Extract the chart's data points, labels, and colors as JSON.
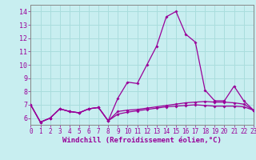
{
  "title": "",
  "xlabel": "Windchill (Refroidissement éolien,°C)",
  "bg_color": "#c8eef0",
  "line_color": "#990099",
  "grid_color": "#aadddd",
  "spine_color": "#888888",
  "x_values": [
    0,
    1,
    2,
    3,
    4,
    5,
    6,
    7,
    8,
    9,
    10,
    11,
    12,
    13,
    14,
    15,
    16,
    17,
    18,
    19,
    20,
    21,
    22,
    23
  ],
  "series1": [
    7.0,
    5.7,
    6.0,
    6.7,
    6.5,
    6.4,
    6.7,
    6.8,
    5.8,
    7.5,
    8.7,
    8.6,
    10.0,
    11.4,
    13.6,
    14.0,
    12.3,
    11.7,
    8.1,
    7.3,
    7.3,
    8.4,
    7.3,
    6.6
  ],
  "series2": [
    7.0,
    5.7,
    6.0,
    6.7,
    6.5,
    6.4,
    6.7,
    6.8,
    5.8,
    6.5,
    6.6,
    6.65,
    6.75,
    6.85,
    6.95,
    7.05,
    7.15,
    7.2,
    7.25,
    7.2,
    7.2,
    7.15,
    7.05,
    6.6
  ],
  "series3": [
    7.0,
    5.7,
    6.0,
    6.7,
    6.5,
    6.4,
    6.7,
    6.8,
    5.8,
    6.3,
    6.45,
    6.55,
    6.65,
    6.75,
    6.85,
    6.9,
    6.95,
    7.0,
    6.95,
    6.9,
    6.9,
    6.9,
    6.85,
    6.6
  ],
  "ylim": [
    5.5,
    14.5
  ],
  "yticks": [
    6,
    7,
    8,
    9,
    10,
    11,
    12,
    13,
    14
  ],
  "xlim": [
    0,
    23
  ],
  "xticks": [
    0,
    1,
    2,
    3,
    4,
    5,
    6,
    7,
    8,
    9,
    10,
    11,
    12,
    13,
    14,
    15,
    16,
    17,
    18,
    19,
    20,
    21,
    22,
    23
  ],
  "tick_fontsize": 5.5,
  "xlabel_fontsize": 6.5,
  "marker_size": 2.0,
  "line_width": 0.9
}
